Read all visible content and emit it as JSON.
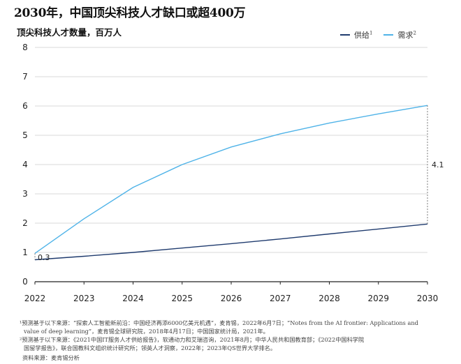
{
  "header": {
    "title": "2030年，中国顶尖科技人才缺口或超400万"
  },
  "chart_data": {
    "type": "line",
    "title": "2030年，中国顶尖科技人才缺口或超400万",
    "ylabel": "顶尖科技人才数量，百万人",
    "xlabel": "",
    "x": [
      "2022",
      "2023",
      "2024",
      "2025",
      "2026",
      "2027",
      "2028",
      "2029",
      "2030"
    ],
    "xticks": [
      "2022",
      "2023",
      "2024",
      "2025",
      "2026",
      "2027",
      "2028",
      "2029",
      "2030"
    ],
    "yticks": [
      "0",
      "1",
      "2",
      "3",
      "4",
      "5",
      "6",
      "7",
      "8"
    ],
    "ylim": [
      0,
      8
    ],
    "grid": true,
    "legend_position": "top-right",
    "series": [
      {
        "name": "供给",
        "sup": "1",
        "color": "#1f3b6e",
        "values": [
          0.75,
          0.87,
          1.0,
          1.15,
          1.3,
          1.46,
          1.63,
          1.8,
          1.97
        ]
      },
      {
        "name": "需求",
        "sup": "2",
        "color": "#4fb3e8",
        "values": [
          0.97,
          2.15,
          3.22,
          4.0,
          4.6,
          5.05,
          5.42,
          5.73,
          6.02
        ]
      }
    ],
    "annotations": [
      {
        "label": "0.3",
        "x": "2022"
      },
      {
        "label": "4.1",
        "x": "2030"
      }
    ]
  },
  "footnotes": [
    "¹预测基于以下来源：“探索人工智能新前沿：中国经济再添6000亿美元机遇”，麦肯锡，2022年6月7日；“Notes from the AI frontier: Applications and",
    "value of deep learning”，麦肯锡全球研究院，2018年4月17日；中国国家统计局，2021年。",
    "²预测基于以下来源：《2021中国IT服务人才供给报告》，软通动力和艾瑞咨询，2021年8月；中华人民共和国教育部；《2022中国科学院",
    "国留学报告》，联合国教科文组织统计研究所；领英人才洞察，2022年；2023年QS世界大学排名。"
  ],
  "source": "资料来源：麦肯锡分析"
}
